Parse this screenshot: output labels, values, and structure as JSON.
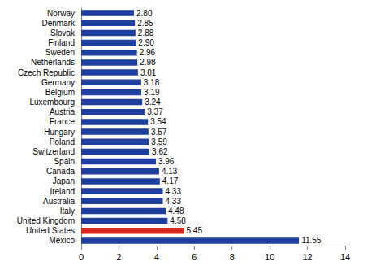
{
  "chart_data": {
    "type": "bar",
    "orientation": "horizontal",
    "categories": [
      "Norway",
      "Denmark",
      "Slovak",
      "Finland",
      "Sweden",
      "Netherlands",
      "Czech Republic",
      "Germany",
      "Belgium",
      "Luxembourg",
      "Austria",
      "France",
      "Hungary",
      "Poland",
      "Switzerland",
      "Spain",
      "Canada",
      "Japan",
      "Ireland",
      "Australia",
      "Italy",
      "United Kingdom",
      "United States",
      "Mexico"
    ],
    "values": [
      2.8,
      2.85,
      2.88,
      2.9,
      2.96,
      2.98,
      3.01,
      3.18,
      3.19,
      3.24,
      3.37,
      3.54,
      3.57,
      3.59,
      3.62,
      3.96,
      4.13,
      4.17,
      4.33,
      4.33,
      4.48,
      4.58,
      5.45,
      11.55
    ],
    "value_labels": [
      "2.80",
      "2.85",
      "2.88",
      "2.90",
      "2.96",
      "2.98",
      "3.01",
      "3.18",
      "3.19",
      "3.24",
      "3.37",
      "3.54",
      "3.57",
      "3.59",
      "3.62",
      "3.96",
      "4.13",
      "4.17",
      "4.33",
      "4.33",
      "4.48",
      "4.58",
      "5.45",
      "11.55"
    ],
    "colors": [
      "#1f3f9e",
      "#1f3f9e",
      "#1f3f9e",
      "#1f3f9e",
      "#1f3f9e",
      "#1f3f9e",
      "#1f3f9e",
      "#1f3f9e",
      "#1f3f9e",
      "#1f3f9e",
      "#1f3f9e",
      "#1f3f9e",
      "#1f3f9e",
      "#1f3f9e",
      "#1f3f9e",
      "#1f3f9e",
      "#1f3f9e",
      "#1f3f9e",
      "#1f3f9e",
      "#1f3f9e",
      "#1f3f9e",
      "#1f3f9e",
      "#d42a1c",
      "#1f3f9e"
    ],
    "xlim": [
      0,
      14
    ],
    "xticks": [
      0,
      2,
      4,
      6,
      8,
      10,
      12,
      14
    ],
    "data_labels": true,
    "grid": false
  }
}
